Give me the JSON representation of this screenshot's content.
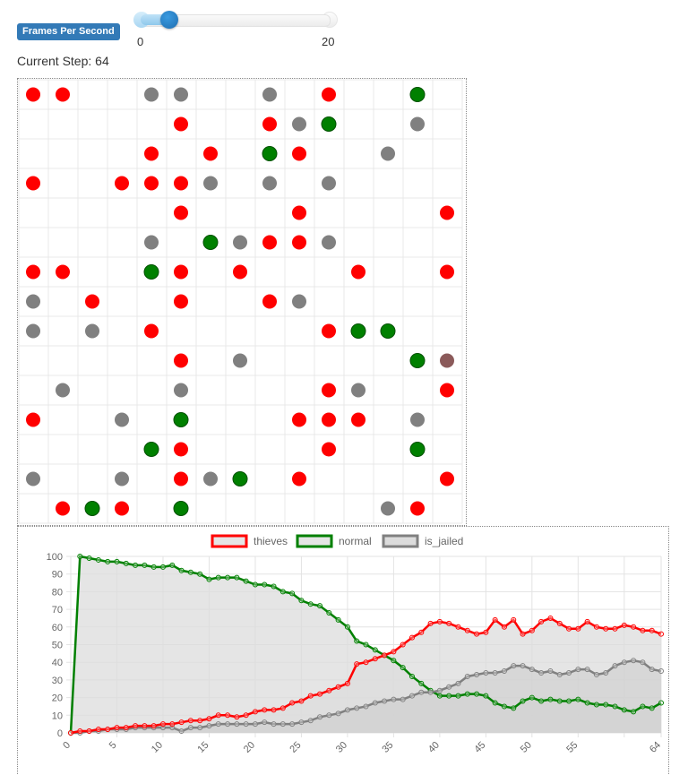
{
  "controls": {
    "fps_label": "Frames Per Second",
    "slider": {
      "min": 0,
      "max": 20,
      "value": 2,
      "min_label": "0",
      "max_label": "20"
    },
    "step_label": "Current Step: 64"
  },
  "colors": {
    "red": "#ff0000",
    "green": "#008000",
    "gray": "#808080",
    "brown": "#8b5a5a"
  },
  "grid": {
    "cols": 15,
    "rows": 15,
    "agents": [
      [
        0,
        0,
        "red"
      ],
      [
        1,
        0,
        "red"
      ],
      [
        4,
        0,
        "gray"
      ],
      [
        5,
        0,
        "gray"
      ],
      [
        8,
        0,
        "gray"
      ],
      [
        10,
        0,
        "red"
      ],
      [
        13,
        0,
        "green"
      ],
      [
        5,
        1,
        "red"
      ],
      [
        8,
        1,
        "red"
      ],
      [
        9,
        1,
        "gray"
      ],
      [
        10,
        1,
        "green"
      ],
      [
        13,
        1,
        "gray"
      ],
      [
        4,
        2,
        "red"
      ],
      [
        6,
        2,
        "red"
      ],
      [
        8,
        2,
        "green"
      ],
      [
        9,
        2,
        "red"
      ],
      [
        12,
        2,
        "gray"
      ],
      [
        0,
        3,
        "red"
      ],
      [
        3,
        3,
        "red"
      ],
      [
        4,
        3,
        "red"
      ],
      [
        5,
        3,
        "red"
      ],
      [
        6,
        3,
        "gray"
      ],
      [
        8,
        3,
        "gray"
      ],
      [
        10,
        3,
        "gray"
      ],
      [
        5,
        4,
        "red"
      ],
      [
        9,
        4,
        "red"
      ],
      [
        14,
        4,
        "red"
      ],
      [
        4,
        5,
        "gray"
      ],
      [
        6,
        5,
        "green"
      ],
      [
        7,
        5,
        "gray"
      ],
      [
        8,
        5,
        "red"
      ],
      [
        9,
        5,
        "red"
      ],
      [
        10,
        5,
        "gray"
      ],
      [
        0,
        6,
        "red"
      ],
      [
        1,
        6,
        "red"
      ],
      [
        4,
        6,
        "green"
      ],
      [
        5,
        6,
        "red"
      ],
      [
        7,
        6,
        "red"
      ],
      [
        11,
        6,
        "red"
      ],
      [
        14,
        6,
        "red"
      ],
      [
        0,
        7,
        "gray"
      ],
      [
        2,
        7,
        "red"
      ],
      [
        5,
        7,
        "red"
      ],
      [
        8,
        7,
        "red"
      ],
      [
        9,
        7,
        "gray"
      ],
      [
        0,
        8,
        "gray"
      ],
      [
        2,
        8,
        "gray"
      ],
      [
        4,
        8,
        "red"
      ],
      [
        10,
        8,
        "red"
      ],
      [
        11,
        8,
        "green"
      ],
      [
        12,
        8,
        "green"
      ],
      [
        5,
        9,
        "red"
      ],
      [
        7,
        9,
        "gray"
      ],
      [
        13,
        9,
        "green"
      ],
      [
        14,
        9,
        "brown"
      ],
      [
        1,
        10,
        "gray"
      ],
      [
        5,
        10,
        "gray"
      ],
      [
        10,
        10,
        "red"
      ],
      [
        11,
        10,
        "gray"
      ],
      [
        14,
        10,
        "red"
      ],
      [
        0,
        11,
        "red"
      ],
      [
        3,
        11,
        "gray"
      ],
      [
        5,
        11,
        "green"
      ],
      [
        9,
        11,
        "red"
      ],
      [
        10,
        11,
        "red"
      ],
      [
        11,
        11,
        "red"
      ],
      [
        13,
        11,
        "gray"
      ],
      [
        4,
        12,
        "green"
      ],
      [
        5,
        12,
        "red"
      ],
      [
        10,
        12,
        "red"
      ],
      [
        13,
        12,
        "green"
      ],
      [
        0,
        13,
        "gray"
      ],
      [
        3,
        13,
        "gray"
      ],
      [
        5,
        13,
        "red"
      ],
      [
        6,
        13,
        "gray"
      ],
      [
        7,
        13,
        "green"
      ],
      [
        9,
        13,
        "red"
      ],
      [
        14,
        13,
        "red"
      ],
      [
        1,
        14,
        "red"
      ],
      [
        2,
        14,
        "green"
      ],
      [
        3,
        14,
        "red"
      ],
      [
        5,
        14,
        "green"
      ],
      [
        12,
        14,
        "gray"
      ],
      [
        13,
        14,
        "red"
      ]
    ]
  },
  "chart_data": {
    "type": "line",
    "x": [
      0,
      1,
      2,
      3,
      4,
      5,
      6,
      7,
      8,
      9,
      10,
      11,
      12,
      13,
      14,
      15,
      16,
      17,
      18,
      19,
      20,
      21,
      22,
      23,
      24,
      25,
      26,
      27,
      28,
      29,
      30,
      31,
      32,
      33,
      34,
      35,
      36,
      37,
      38,
      39,
      40,
      41,
      42,
      43,
      44,
      45,
      46,
      47,
      48,
      49,
      50,
      51,
      52,
      53,
      54,
      55,
      56,
      57,
      58,
      59,
      60,
      61,
      62,
      63,
      64
    ],
    "x_ticks": [
      "0",
      "5",
      "10",
      "15",
      "20",
      "25",
      "30",
      "35",
      "40",
      "45",
      "50",
      "55",
      "64"
    ],
    "x_tick_values": [
      0,
      5,
      10,
      15,
      20,
      25,
      30,
      35,
      40,
      45,
      50,
      55,
      64
    ],
    "ylim": [
      0,
      100
    ],
    "y_ticks": [
      0,
      10,
      20,
      30,
      40,
      50,
      60,
      70,
      80,
      90,
      100
    ],
    "legend_position": "top",
    "series": [
      {
        "name": "thieves",
        "color": "#ff0000",
        "values": [
          0,
          1,
          1,
          2,
          2,
          3,
          3,
          4,
          4,
          4,
          5,
          5,
          6,
          7,
          7,
          8,
          10,
          10,
          9,
          10,
          12,
          13,
          13,
          14,
          17,
          18,
          21,
          22,
          24,
          26,
          28,
          39,
          40,
          42,
          44,
          46,
          50,
          54,
          57,
          62,
          63,
          62,
          60,
          58,
          56,
          57,
          64,
          60,
          64,
          56,
          58,
          63,
          65,
          62,
          59,
          59,
          63,
          60,
          59,
          59,
          61,
          60,
          58,
          58,
          56
        ]
      },
      {
        "name": "normal",
        "color": "#008000",
        "values": [
          0,
          100,
          99,
          98,
          97,
          97,
          96,
          95,
          95,
          94,
          94,
          95,
          92,
          91,
          90,
          87,
          88,
          88,
          88,
          86,
          84,
          84,
          83,
          80,
          79,
          75,
          73,
          72,
          68,
          64,
          60,
          52,
          50,
          47,
          44,
          41,
          37,
          32,
          28,
          24,
          21,
          21,
          21,
          22,
          22,
          21,
          17,
          15,
          14,
          18,
          20,
          18,
          19,
          18,
          18,
          19,
          17,
          16,
          16,
          15,
          13,
          12,
          15,
          14,
          17
        ]
      },
      {
        "name": "is_jailed",
        "color": "#808080",
        "values": [
          0,
          0,
          1,
          1,
          2,
          2,
          2,
          3,
          3,
          3,
          3,
          3,
          1,
          3,
          3,
          4,
          5,
          5,
          5,
          5,
          5,
          6,
          5,
          5,
          5,
          6,
          7,
          9,
          10,
          11,
          13,
          14,
          15,
          17,
          18,
          19,
          19,
          21,
          23,
          23,
          24,
          26,
          28,
          32,
          33,
          34,
          34,
          35,
          38,
          38,
          36,
          34,
          35,
          33,
          34,
          36,
          36,
          33,
          34,
          38,
          40,
          41,
          40,
          36,
          35
        ]
      }
    ]
  }
}
